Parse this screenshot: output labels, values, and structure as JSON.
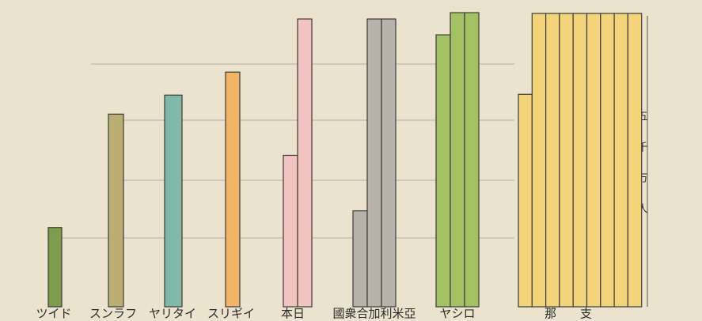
{
  "chart_data": {
    "type": "bar",
    "axis_label": "五千万人",
    "ylim": [
      0,
      370
    ],
    "bars": [
      {
        "label": "ツイド",
        "color": "#7d9c4c",
        "columns": [
          100
        ]
      },
      {
        "label": "スンラフ",
        "color": "#bcae72",
        "columns": [
          243
        ]
      },
      {
        "label": "ヤリタイ",
        "color": "#80b9aa",
        "columns": [
          267
        ]
      },
      {
        "label": "スリギイ",
        "color": "#f2b466",
        "columns": [
          296
        ]
      },
      {
        "label": "本日",
        "color": "#f2c4c2",
        "columns": [
          191,
          363
        ]
      },
      {
        "label": "國衆合加利米亞",
        "color": "#b9b2aa",
        "columns": [
          121,
          363,
          363
        ]
      },
      {
        "label": "ヤシロ",
        "color": "#a2c264",
        "columns": [
          343,
          371,
          371
        ]
      },
      {
        "label": "那支",
        "color": "#f4d47a",
        "columns": [
          268,
          370,
          370,
          370,
          370,
          370,
          370,
          370,
          370
        ]
      }
    ]
  }
}
